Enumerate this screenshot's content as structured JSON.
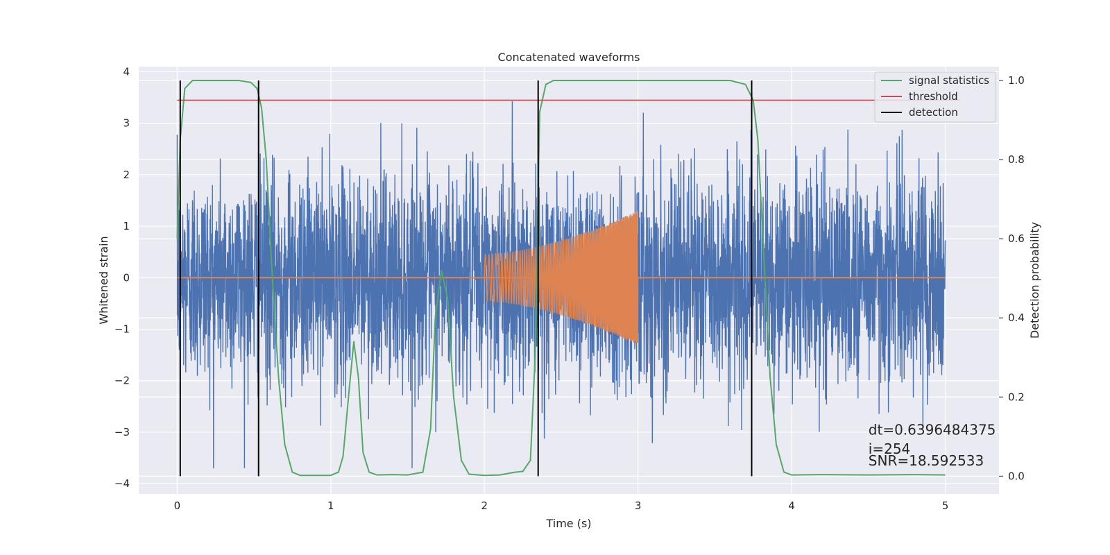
{
  "chart_data": {
    "type": "line",
    "title": "Concatenated waveforms",
    "xlabel": "Time (s)",
    "ylabel_left": "Whitened strain",
    "ylabel_right": "Detection probability",
    "xlim": [
      -0.25,
      5.35
    ],
    "ylim_left": [
      -4.2,
      4.1
    ],
    "ylim_right": [
      -0.045,
      1.035
    ],
    "x_ticks": [
      0,
      1,
      2,
      3,
      4,
      5
    ],
    "y_ticks_left": [
      -4,
      -3,
      -2,
      -1,
      0,
      1,
      2,
      3,
      4
    ],
    "y_ticks_right": [
      0.0,
      0.2,
      0.4,
      0.6,
      0.8,
      1.0
    ],
    "y_tick_labels_left": [
      "−4",
      "−3",
      "−2",
      "−1",
      "0",
      "1",
      "2",
      "3",
      "4"
    ],
    "y_tick_labels_right": [
      "0.0",
      "0.2",
      "0.4",
      "0.6",
      "0.8",
      "1.0"
    ],
    "grid": true,
    "legend_position": "top-right",
    "series": [
      {
        "name": "",
        "axis": "left",
        "color": "#4c72b0",
        "kind": "noise",
        "x_range": [
          0,
          5
        ],
        "typical_amplitude": 1.0,
        "peak_amplitude": 3.7
      },
      {
        "name": "",
        "axis": "left",
        "color": "#dd8452",
        "kind": "chirp",
        "zero_line_x_range": [
          0,
          5
        ],
        "chirp_x_range": [
          2.0,
          3.0
        ],
        "amplitude_start": 0.45,
        "amplitude_end": 1.3
      },
      {
        "name": "signal statistics",
        "axis": "right",
        "color": "#55a868",
        "x": [
          0.0,
          0.02,
          0.05,
          0.1,
          0.2,
          0.3,
          0.4,
          0.48,
          0.52,
          0.55,
          0.58,
          0.62,
          0.66,
          0.7,
          0.75,
          0.8,
          0.9,
          1.0,
          1.05,
          1.08,
          1.12,
          1.15,
          1.18,
          1.21,
          1.25,
          1.3,
          1.4,
          1.5,
          1.6,
          1.65,
          1.68,
          1.72,
          1.76,
          1.8,
          1.85,
          1.9,
          2.0,
          2.1,
          2.2,
          2.25,
          2.3,
          2.33,
          2.36,
          2.4,
          2.45,
          2.6,
          2.8,
          3.0,
          3.2,
          3.4,
          3.6,
          3.7,
          3.75,
          3.78,
          3.82,
          3.86,
          3.9,
          3.95,
          4.0,
          4.2,
          4.5,
          4.8,
          5.0
        ],
        "y": [
          0.6,
          0.85,
          0.98,
          1.0,
          1.0,
          1.0,
          1.0,
          0.995,
          0.98,
          0.93,
          0.8,
          0.5,
          0.25,
          0.08,
          0.01,
          0.002,
          0.002,
          0.002,
          0.01,
          0.05,
          0.22,
          0.34,
          0.25,
          0.06,
          0.01,
          0.003,
          0.004,
          0.003,
          0.01,
          0.12,
          0.4,
          0.52,
          0.45,
          0.2,
          0.04,
          0.005,
          0.002,
          0.003,
          0.01,
          0.012,
          0.04,
          0.3,
          0.92,
          0.99,
          1.0,
          1.0,
          1.0,
          1.0,
          1.0,
          1.0,
          1.0,
          0.99,
          0.95,
          0.85,
          0.55,
          0.25,
          0.08,
          0.01,
          0.003,
          0.004,
          0.003,
          0.004,
          0.003
        ]
      },
      {
        "name": "threshold",
        "axis": "right",
        "color": "#c44e52",
        "x": [
          0,
          5.1
        ],
        "y": [
          0.95,
          0.95
        ]
      },
      {
        "name": "detection",
        "axis": "right",
        "color": "#000000",
        "vlines": [
          0.02,
          0.53,
          2.35,
          3.74
        ],
        "y_range": [
          0.0,
          1.0
        ]
      }
    ],
    "annotations": [
      {
        "text": "dt=0.6396484375",
        "x": 4.5,
        "y": -3.05
      },
      {
        "text": " i=254",
        "x": 4.5,
        "y": -3.42
      },
      {
        "text": "SNR=18.592533",
        "x": 4.5,
        "y": -3.65
      }
    ]
  }
}
